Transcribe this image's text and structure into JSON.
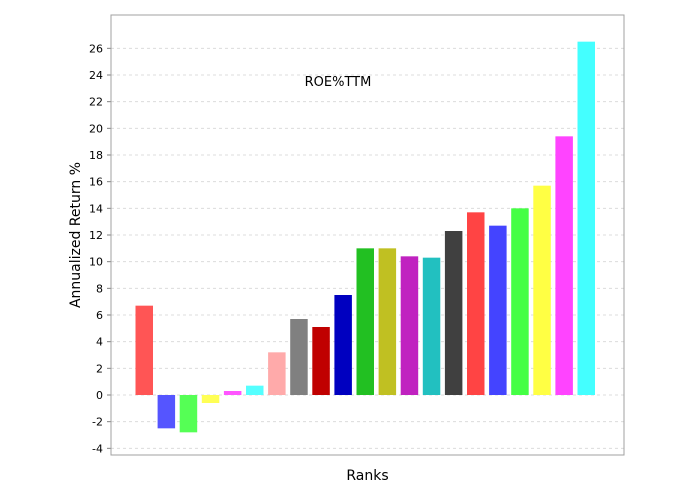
{
  "chart_data": {
    "type": "bar",
    "annotation": "ROE%TTM",
    "xlabel": "Ranks",
    "ylabel": "Annualized Return %",
    "ylim": [
      -4.5,
      28.5
    ],
    "yticks": [
      -4,
      -2,
      0,
      2,
      4,
      6,
      8,
      10,
      12,
      14,
      16,
      18,
      20,
      22,
      24,
      26
    ],
    "grid": true,
    "legend": "none",
    "values": [
      6.7,
      -2.5,
      -2.8,
      -0.6,
      0.3,
      0.7,
      3.2,
      5.7,
      5.1,
      7.5,
      11.0,
      11.0,
      10.4,
      10.3,
      12.3,
      13.7,
      12.7,
      14.0,
      15.7,
      19.4,
      26.5
    ],
    "colors": [
      "#ff5555",
      "#5555ff",
      "#55ff55",
      "#ffff55",
      "#ff55ff",
      "#55ffff",
      "#ffaaaa",
      "#808080",
      "#c00000",
      "#0000c0",
      "#22c022",
      "#c0c022",
      "#c022c0",
      "#22c0c0",
      "#404040",
      "#ff4444",
      "#4444ff",
      "#44ff44",
      "#ffff44",
      "#ff44ff",
      "#44ffff"
    ]
  }
}
